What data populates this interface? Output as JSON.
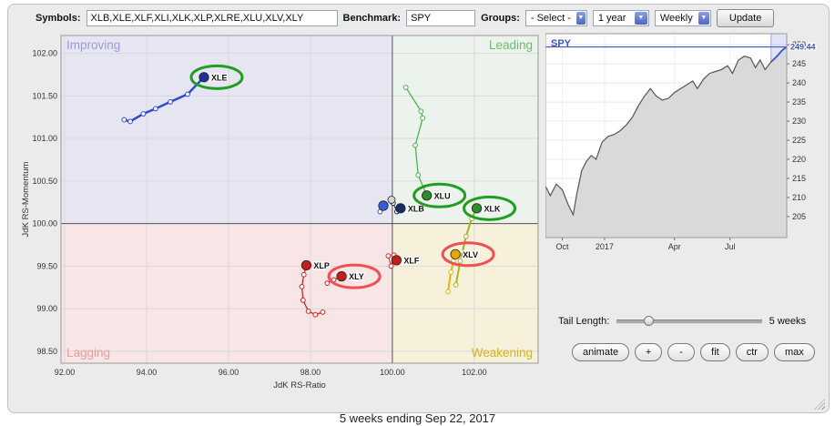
{
  "toolbar": {
    "symbols_label": "Symbols:",
    "symbols_value": "XLB,XLE,XLF,XLI,XLK,XLP,XLRE,XLU,XLV,XLY",
    "benchmark_label": "Benchmark:",
    "benchmark_value": "SPY",
    "groups_label": "Groups:",
    "groups_select": "- Select -",
    "period_select": "1 year",
    "interval_select": "Weekly",
    "update_button": "Update"
  },
  "controls": {
    "tail_label": "Tail Length:",
    "tail_value": "5 weeks",
    "slider_pos": 0.22,
    "buttons": [
      "animate",
      "+",
      "-",
      "fit",
      "ctr",
      "max"
    ]
  },
  "footer": "5 weeks ending Sep 22, 2017",
  "chart_data": [
    {
      "type": "scatter",
      "name": "relative-rotation-graph",
      "xlabel": "JdK RS-Ratio",
      "ylabel": "JdK RS-Momentum",
      "xlim": [
        91.91,
        103.56
      ],
      "ylim": [
        98.36,
        102.21
      ],
      "xticks": [
        92,
        94,
        96,
        98,
        100,
        102
      ],
      "yticks": [
        102,
        101.5,
        101,
        100.5,
        100,
        99.5,
        99,
        98.5
      ],
      "center": [
        100,
        100
      ],
      "quadrants": [
        {
          "name": "Improving",
          "pos": "top-left",
          "fill": "#e6e6f3",
          "label_color": "#9b9bd8"
        },
        {
          "name": "Leading",
          "pos": "top-right",
          "fill": "#ecf3ec",
          "label_color": "#6abf6a"
        },
        {
          "name": "Lagging",
          "pos": "bottom-left",
          "fill": "#f8e6e6",
          "label_color": "#f09a9a"
        },
        {
          "name": "Weakening",
          "pos": "bottom-right",
          "fill": "#f7f1dc",
          "label_color": "#d8b414"
        }
      ],
      "series": [
        {
          "name": "XLE",
          "color": "#2c49d8",
          "head_color": "#1e2f9b",
          "width": 2.5,
          "show_label": true,
          "ring": "#1f9e1f",
          "points": [
            [
              93.45,
              101.22
            ],
            [
              93.6,
              101.2
            ],
            [
              93.92,
              101.29
            ],
            [
              94.22,
              101.35
            ],
            [
              94.58,
              101.43
            ],
            [
              95.0,
              101.52
            ],
            [
              95.4,
              101.72
            ]
          ]
        },
        {
          "name": "XLU",
          "color": "#4cb44c",
          "head_color": "#2e8b2e",
          "width": 1.3,
          "show_label": true,
          "ring": "#1f9e1f",
          "points": [
            [
              100.33,
              101.6
            ],
            [
              100.7,
              101.32
            ],
            [
              100.74,
              101.24
            ],
            [
              100.56,
              100.92
            ],
            [
              100.63,
              100.57
            ],
            [
              100.84,
              100.33
            ]
          ]
        },
        {
          "name": "XLK",
          "color": "#a2b422",
          "head_color": "#2e8b2e",
          "width": 2,
          "show_label": true,
          "ring": "#1f9e1f",
          "points": [
            [
              101.55,
              99.28
            ],
            [
              101.66,
              99.56
            ],
            [
              101.8,
              99.85
            ],
            [
              101.94,
              100.06
            ],
            [
              102.06,
              100.18
            ]
          ]
        },
        {
          "name": "XLV",
          "color": "#e6b400",
          "head_color": "#e6a800",
          "width": 2,
          "show_label": true,
          "ring": "#f05050",
          "points": [
            [
              101.36,
              99.2
            ],
            [
              101.43,
              99.43
            ],
            [
              101.49,
              99.56
            ],
            [
              101.54,
              99.64
            ]
          ]
        },
        {
          "name": "XLP",
          "color": "#d42222",
          "head_color": "#c41e1e",
          "width": 1.3,
          "show_label": true,
          "ring": null,
          "points": [
            [
              98.3,
              98.96
            ],
            [
              98.12,
              98.93
            ],
            [
              97.95,
              98.97
            ],
            [
              97.82,
              99.1
            ],
            [
              97.79,
              99.26
            ],
            [
              97.84,
              99.4
            ],
            [
              97.9,
              99.51
            ]
          ]
        },
        {
          "name": "XLY",
          "color": "#d42222",
          "head_color": "#c41e1e",
          "width": 1.3,
          "show_label": true,
          "ring": "#f05050",
          "points": [
            [
              98.41,
              99.3
            ],
            [
              98.57,
              99.34
            ],
            [
              98.76,
              99.38
            ]
          ]
        },
        {
          "name": "XLF",
          "color": "#d42222",
          "head_color": "#c41e1e",
          "width": 1,
          "show_label": true,
          "ring": null,
          "points": [
            [
              99.9,
              99.62
            ],
            [
              99.97,
              99.5
            ],
            [
              100.04,
              99.63
            ],
            [
              100.1,
              99.57
            ]
          ]
        },
        {
          "name": "XLB",
          "color": "#1c2b66",
          "head_color": "#1c2b66",
          "width": 1,
          "show_label": true,
          "ring": null,
          "points": [
            [
              100.02,
              100.24
            ],
            [
              100.11,
              100.14
            ],
            [
              100.2,
              100.18
            ]
          ]
        },
        {
          "name": "XLI",
          "color": "#3a5bd9",
          "head_color": "#3a5bd9",
          "width": 1,
          "show_label": false,
          "ring": null,
          "points": [
            [
              99.7,
              100.14
            ],
            [
              99.78,
              100.21
            ]
          ]
        },
        {
          "name": "XLRE",
          "color": "#d4d4dc",
          "head_color": "#d4d4dc",
          "width": 1,
          "show_label": false,
          "ring": null,
          "points": [
            [
              99.98,
              100.28
            ]
          ]
        }
      ]
    },
    {
      "type": "line",
      "name": "benchmark-price",
      "title": "SPY",
      "title_color": "#3a56c8",
      "last_value": "249.44",
      "last_level": 249.44,
      "ylim": [
        199.5,
        252.9
      ],
      "yticks": [
        205,
        210,
        215,
        220,
        225,
        230,
        235,
        240,
        245,
        250
      ],
      "xticks": [
        {
          "label": "Oct",
          "pos": 0.07
        },
        {
          "label": "2017",
          "pos": 0.245
        },
        {
          "label": "Apr",
          "pos": 0.535
        },
        {
          "label": "Jul",
          "pos": 0.765
        }
      ],
      "band_start": 0.935,
      "line_color": "#555555",
      "fill_color": "#d9d9d9",
      "highlight_color": "#3a56c8",
      "points": [
        [
          0,
          213
        ],
        [
          0.02,
          210.5
        ],
        [
          0.045,
          213.5
        ],
        [
          0.07,
          212
        ],
        [
          0.095,
          208
        ],
        [
          0.115,
          205.5
        ],
        [
          0.13,
          211
        ],
        [
          0.15,
          217
        ],
        [
          0.17,
          219.5
        ],
        [
          0.19,
          221
        ],
        [
          0.21,
          220
        ],
        [
          0.235,
          224.5
        ],
        [
          0.26,
          226
        ],
        [
          0.285,
          226.5
        ],
        [
          0.31,
          227.5
        ],
        [
          0.335,
          229
        ],
        [
          0.36,
          231
        ],
        [
          0.385,
          234
        ],
        [
          0.41,
          236.5
        ],
        [
          0.435,
          238.5
        ],
        [
          0.46,
          236.5
        ],
        [
          0.485,
          235.5
        ],
        [
          0.51,
          236
        ],
        [
          0.535,
          237.5
        ],
        [
          0.56,
          238.5
        ],
        [
          0.585,
          239.5
        ],
        [
          0.61,
          240.5
        ],
        [
          0.63,
          238.5
        ],
        [
          0.655,
          241
        ],
        [
          0.68,
          242.5
        ],
        [
          0.705,
          243
        ],
        [
          0.73,
          243.5
        ],
        [
          0.755,
          244.5
        ],
        [
          0.775,
          242.5
        ],
        [
          0.8,
          246
        ],
        [
          0.825,
          247
        ],
        [
          0.85,
          246.5
        ],
        [
          0.87,
          244
        ],
        [
          0.89,
          246
        ],
        [
          0.91,
          243.5
        ],
        [
          0.935,
          245.5
        ],
        [
          0.96,
          247
        ],
        [
          0.98,
          248.5
        ],
        [
          1,
          249.44
        ]
      ]
    }
  ]
}
